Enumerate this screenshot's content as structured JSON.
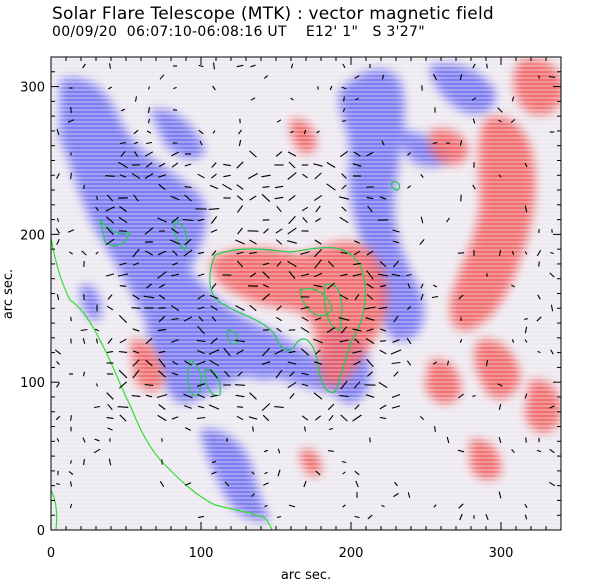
{
  "header": {
    "title": "Solar Flare Telescope (MTK) : vector magnetic field",
    "subtitle": "00/09/20  06:07:10-06:08:16 UT    E12' 1\"   S 3'27\""
  },
  "axes": {
    "xlabel": "arc sec.",
    "ylabel": "arc sec.",
    "xlim": [
      0,
      340
    ],
    "ylim": [
      0,
      320
    ],
    "xticks": [
      0,
      100,
      200,
      300
    ],
    "yticks": [
      0,
      100,
      200,
      300
    ]
  },
  "colors": {
    "negative_polarity": "#6b6bf0",
    "positive_polarity": "#f05a5a",
    "neutral_line": "#22cc55",
    "limb_line": "#33dd33",
    "vectors": "#000000"
  }
}
